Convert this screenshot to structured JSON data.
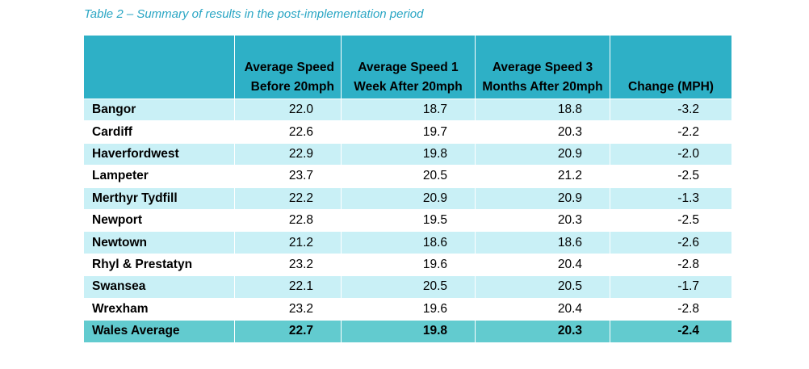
{
  "caption": "Table 2 – Summary of results in the post-implementation period",
  "table": {
    "headers": {
      "name": "",
      "before": "Average Speed Before 20mph",
      "week": "Average Speed  1 Week After 20mph",
      "months": "Average Speed 3 Months After 20mph",
      "change": "Change (MPH)"
    },
    "rows": [
      {
        "name": "Bangor",
        "before": "22.0",
        "week": "18.7",
        "months": "18.8",
        "change": "-3.2"
      },
      {
        "name": "Cardiff",
        "before": "22.6",
        "week": "19.7",
        "months": "20.3",
        "change": "-2.2"
      },
      {
        "name": "Haverfordwest",
        "before": "22.9",
        "week": "19.8",
        "months": "20.9",
        "change": "-2.0"
      },
      {
        "name": "Lampeter",
        "before": "23.7",
        "week": "20.5",
        "months": "21.2",
        "change": "-2.5"
      },
      {
        "name": "Merthyr Tydfill",
        "before": "22.2",
        "week": "20.9",
        "months": "20.9",
        "change": "-1.3"
      },
      {
        "name": "Newport",
        "before": "22.8",
        "week": "19.5",
        "months": "20.3",
        "change": "-2.5"
      },
      {
        "name": "Newtown",
        "before": "21.2",
        "week": "18.6",
        "months": "18.6",
        "change": "-2.6"
      },
      {
        "name": "Rhyl & Prestatyn",
        "before": "23.2",
        "week": "19.6",
        "months": "20.4",
        "change": "-2.8"
      },
      {
        "name": "Swansea",
        "before": "22.1",
        "week": "20.5",
        "months": "20.5",
        "change": "-1.7"
      },
      {
        "name": "Wrexham",
        "before": "23.2",
        "week": "19.6",
        "months": "20.4",
        "change": "-2.8"
      }
    ],
    "footer": {
      "name": "Wales Average",
      "before": "22.7",
      "week": "19.8",
      "months": "20.3",
      "change": "-2.4"
    }
  },
  "colors": {
    "caption": "#2aa6c4",
    "header_bg": "#2eb0c6",
    "band_bg": "#c9f0f6",
    "footer_bg": "#62cbcf"
  }
}
